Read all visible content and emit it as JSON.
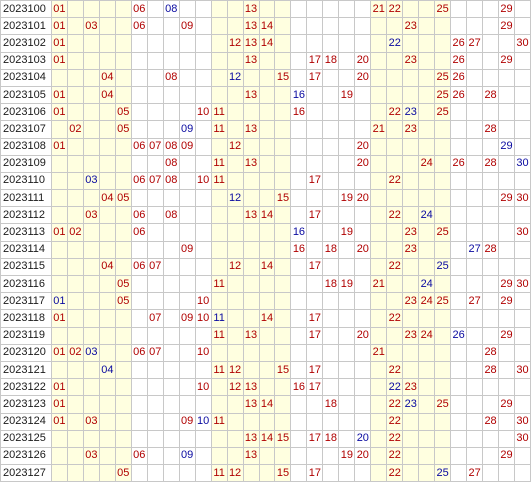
{
  "rows": [
    {
      "period": "2023100",
      "red": [
        "01",
        "06",
        "13",
        "21",
        "22",
        "25",
        "29"
      ],
      "blue": [
        "08"
      ]
    },
    {
      "period": "2023101",
      "red": [
        "01",
        "03",
        "06",
        "09",
        "13",
        "14",
        "23",
        "29"
      ],
      "blue": []
    },
    {
      "period": "2023102",
      "red": [
        "01",
        "12",
        "13",
        "14",
        "26",
        "27",
        "30"
      ],
      "blue": [
        "22"
      ]
    },
    {
      "period": "2023103",
      "red": [
        "01",
        "13",
        "17",
        "18",
        "20",
        "23",
        "26",
        "29"
      ],
      "blue": []
    },
    {
      "period": "2023104",
      "red": [
        "04",
        "08",
        "15",
        "17",
        "20",
        "25",
        "26"
      ],
      "blue": [
        "12"
      ]
    },
    {
      "period": "2023105",
      "red": [
        "01",
        "04",
        "13",
        "19",
        "25",
        "26",
        "28"
      ],
      "blue": [
        "16"
      ]
    },
    {
      "period": "2023106",
      "red": [
        "01",
        "05",
        "10",
        "11",
        "16",
        "22",
        "25"
      ],
      "blue": [
        "23"
      ]
    },
    {
      "period": "2023107",
      "red": [
        "02",
        "05",
        "11",
        "13",
        "21",
        "23",
        "28"
      ],
      "blue": [
        "09"
      ]
    },
    {
      "period": "2023108",
      "red": [
        "01",
        "06",
        "07",
        "08",
        "09",
        "12",
        "20"
      ],
      "blue": [
        "29"
      ]
    },
    {
      "period": "2023109",
      "red": [
        "08",
        "11",
        "13",
        "20",
        "24",
        "26",
        "28"
      ],
      "blue": [
        "30"
      ]
    },
    {
      "period": "2023110",
      "red": [
        "06",
        "07",
        "08",
        "10",
        "11",
        "17",
        "22"
      ],
      "blue": [
        "03"
      ]
    },
    {
      "period": "2023111",
      "red": [
        "04",
        "05",
        "15",
        "19",
        "20",
        "29",
        "30"
      ],
      "blue": [
        "12"
      ]
    },
    {
      "period": "2023112",
      "red": [
        "03",
        "06",
        "08",
        "13",
        "14",
        "17",
        "22"
      ],
      "blue": [
        "24"
      ]
    },
    {
      "period": "2023113",
      "red": [
        "01",
        "02",
        "06",
        "19",
        "23",
        "25",
        "30"
      ],
      "blue": [
        "16"
      ]
    },
    {
      "period": "2023114",
      "red": [
        "09",
        "16",
        "18",
        "20",
        "23",
        "28"
      ],
      "blue": [
        "27"
      ]
    },
    {
      "period": "2023115",
      "red": [
        "04",
        "06",
        "07",
        "12",
        "14",
        "17",
        "22"
      ],
      "blue": [
        "25"
      ]
    },
    {
      "period": "2023116",
      "red": [
        "05",
        "11",
        "18",
        "19",
        "21",
        "29",
        "30"
      ],
      "blue": [
        "24"
      ]
    },
    {
      "period": "2023117",
      "red": [
        "05",
        "10",
        "23",
        "24",
        "25",
        "27",
        "29"
      ],
      "blue": [
        "01"
      ]
    },
    {
      "period": "2023118",
      "red": [
        "01",
        "07",
        "09",
        "10",
        "14",
        "17",
        "22"
      ],
      "blue": [
        "11"
      ]
    },
    {
      "period": "2023119",
      "red": [
        "11",
        "13",
        "17",
        "20",
        "23",
        "24",
        "29"
      ],
      "blue": [
        "26"
      ]
    },
    {
      "period": "2023120",
      "red": [
        "01",
        "02",
        "06",
        "07",
        "10",
        "21",
        "28"
      ],
      "blue": [
        "03"
      ]
    },
    {
      "period": "2023121",
      "red": [
        "11",
        "12",
        "15",
        "17",
        "22",
        "28",
        "30"
      ],
      "blue": [
        "04"
      ]
    },
    {
      "period": "2023122",
      "red": [
        "01",
        "10",
        "12",
        "13",
        "16",
        "17",
        "23"
      ],
      "blue": [
        "22"
      ]
    },
    {
      "period": "2023123",
      "red": [
        "01",
        "13",
        "14",
        "18",
        "22",
        "25",
        "29"
      ],
      "blue": [
        "23"
      ]
    },
    {
      "period": "2023124",
      "red": [
        "01",
        "03",
        "09",
        "11",
        "22",
        "28",
        "30"
      ],
      "blue": [
        "10"
      ]
    },
    {
      "period": "2023125",
      "red": [
        "13",
        "14",
        "15",
        "17",
        "18",
        "22",
        "30"
      ],
      "blue": [
        "20"
      ]
    },
    {
      "period": "2023126",
      "red": [
        "03",
        "06",
        "13",
        "19",
        "20",
        "22",
        "29"
      ],
      "blue": [
        "09"
      ]
    },
    {
      "period": "2023127",
      "red": [
        "05",
        "11",
        "12",
        "15",
        "17",
        "22",
        "27"
      ],
      "blue": [
        "25"
      ]
    }
  ]
}
